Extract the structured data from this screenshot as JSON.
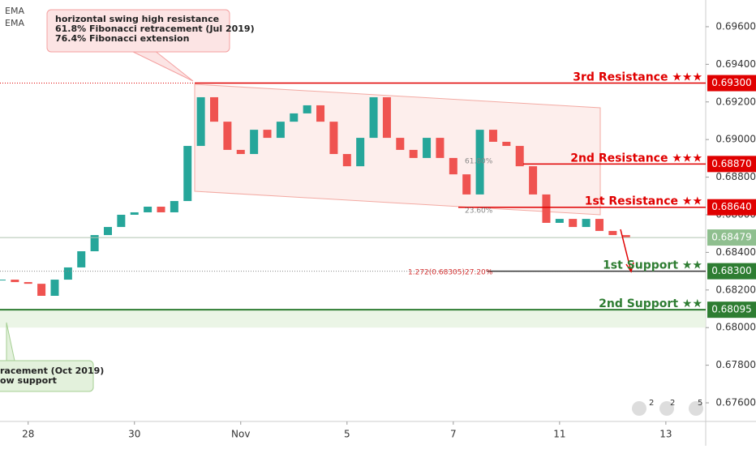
{
  "chart_data": {
    "type": "candlestick",
    "legend": [
      "EMA",
      "EMA"
    ],
    "annotations": [
      [
        "horizontal swing high resistance",
        "61.8% Fibonacci retracement (Jul 2019)",
        "76.4% Fibonacci extension"
      ],
      [
        "racement (Oct 2019)",
        "ow support"
      ]
    ],
    "fib_labels": [
      "61.80%",
      "23.60%",
      "1.272(0.68305)",
      "27.20%"
    ],
    "events": [
      "2",
      "2",
      "5"
    ],
    "xlim": [
      -0.53,
      12.75
    ],
    "xticks": [
      {
        "value": 0,
        "label": "28"
      },
      {
        "value": 2,
        "label": "30"
      },
      {
        "value": 4,
        "label": "Nov"
      },
      {
        "value": 6,
        "label": "5"
      },
      {
        "value": 8,
        "label": "7"
      },
      {
        "value": 10,
        "label": "11"
      },
      {
        "value": 12,
        "label": "13"
      }
    ],
    "ylim": [
      0.67501,
      0.69742
    ],
    "yticks": [
      {
        "value": 0.676,
        "label": "0.67600"
      },
      {
        "value": 0.678,
        "label": "0.67800"
      },
      {
        "value": 0.68,
        "label": "0.68000"
      },
      {
        "value": 0.682,
        "label": "0.68200"
      },
      {
        "value": 0.684,
        "label": "0.68400"
      },
      {
        "value": 0.686,
        "label": "0.68600"
      },
      {
        "value": 0.688,
        "label": "0.68800"
      },
      {
        "value": 0.69,
        "label": "0.69000"
      },
      {
        "value": 0.692,
        "label": "0.69200"
      },
      {
        "value": 0.694,
        "label": "0.69400"
      },
      {
        "value": 0.696,
        "label": "0.69600"
      }
    ],
    "x": [
      -0.5,
      -0.25,
      0,
      0.25,
      0.5,
      0.75,
      1,
      1.25,
      1.5,
      1.75,
      2,
      2.25,
      2.5,
      2.75,
      3,
      3.25,
      3.5,
      3.75,
      4,
      4.25,
      4.5,
      4.75,
      5,
      5.25,
      5.5,
      5.75,
      6,
      6.25,
      6.5,
      6.75,
      7,
      7.25,
      7.5,
      7.75,
      8,
      8.25,
      8.5,
      8.75,
      9,
      9.25,
      9.5,
      9.75,
      10,
      10.25,
      10.5,
      10.75,
      11,
      11.25
    ],
    "series": [
      {
        "name": "Price",
        "up_color": "#26a69a",
        "down_color": "#ef5350",
        "values": [
          0.68255,
          0.68242,
          0.68233,
          0.68169,
          0.68255,
          0.6832,
          0.68406,
          0.68492,
          0.68535,
          0.686,
          0.68613,
          0.68643,
          0.68613,
          0.68673,
          0.68966,
          0.69225,
          0.69095,
          0.68945,
          0.68923,
          0.69052,
          0.69009,
          0.69095,
          0.69139,
          0.69182,
          0.69095,
          0.68923,
          0.68858,
          0.69009,
          0.69225,
          0.69009,
          0.68945,
          0.68902,
          0.69009,
          0.68902,
          0.68815,
          0.68708,
          0.69052,
          0.68988,
          0.68966,
          0.68858,
          0.68708,
          0.68557,
          0.68578,
          0.68535,
          0.68578,
          0.68514,
          0.68492,
          0.68479
        ],
        "last_label": "0.68479"
      }
    ],
    "levels": [
      {
        "name": "3rd Resistance ★★★",
        "value": 0.693,
        "value_label": "0.69300",
        "color": "#e00000"
      },
      {
        "name": "2nd Resistance ★★★",
        "value": 0.6887,
        "value_label": "0.68870",
        "color": "#e00000"
      },
      {
        "name": "1st Resistance ★★",
        "value": 0.6864,
        "value_label": "0.68640",
        "color": "#e00000"
      },
      {
        "name": "1st Support ★★",
        "value": 0.683,
        "value_label": "0.68300",
        "color": "#2e7d32"
      },
      {
        "name": "2nd Support ★★",
        "value": 0.68095,
        "value_label": "0.68095",
        "color": "#2e7d32"
      }
    ]
  }
}
